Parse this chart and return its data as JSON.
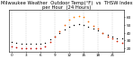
{
  "title": "Milwaukee Weather  Outdoor Temp(°F)  vs  THSW Index\nper Hour  (24 Hours)",
  "hours": [
    0,
    1,
    2,
    3,
    4,
    5,
    6,
    7,
    8,
    9,
    10,
    11,
    12,
    13,
    14,
    15,
    16,
    17,
    18,
    19,
    20,
    21,
    22,
    23
  ],
  "temp": [
    28,
    27,
    26,
    26,
    25,
    25,
    26,
    27,
    31,
    35,
    39,
    44,
    48,
    50,
    51,
    50,
    48,
    45,
    43,
    40,
    37,
    35,
    33,
    32
  ],
  "thsw": [
    22,
    21,
    20,
    20,
    19,
    19,
    20,
    22,
    28,
    35,
    42,
    50,
    57,
    61,
    62,
    60,
    55,
    49,
    45,
    40,
    35,
    32,
    29,
    27
  ],
  "temp_color": "#000000",
  "bg_color": "#ffffff",
  "grid_color": "#b0b0b0",
  "ylim": [
    15,
    70
  ],
  "ytick_vals": [
    20,
    30,
    40,
    50,
    60
  ],
  "xtick_positions": [
    0,
    3,
    6,
    9,
    12,
    15,
    18,
    21
  ],
  "title_fontsize": 3.8,
  "tick_fontsize": 3.0,
  "dot_size_temp": 1.0,
  "dot_size_thsw": 1.5
}
